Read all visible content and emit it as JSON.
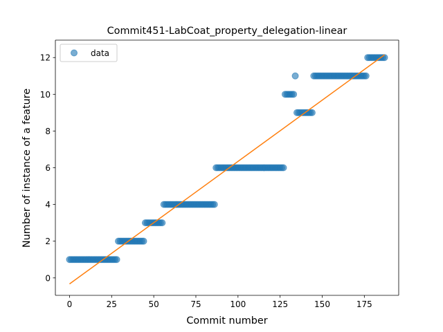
{
  "chart_data": {
    "type": "scatter",
    "title": "Commit451-LabCoat_property_delegation-linear",
    "xlabel": "Commit number",
    "ylabel": "Number of instance of a feature",
    "xlim": [
      -8.4,
      195.4
    ],
    "ylim": [
      -0.95,
      12.95
    ],
    "xticks": [
      0,
      25,
      50,
      75,
      100,
      125,
      150,
      175
    ],
    "yticks": [
      0,
      2,
      4,
      6,
      8,
      10,
      12
    ],
    "legend": {
      "label": "data",
      "position": "top-left"
    },
    "colors": {
      "points": "#1f77b4",
      "fit_line": "#ff7f0e"
    },
    "segments": [
      {
        "x_start": 0,
        "x_end": 28,
        "y": 1
      },
      {
        "x_start": 29,
        "x_end": 44,
        "y": 2
      },
      {
        "x_start": 45,
        "x_end": 55,
        "y": 3
      },
      {
        "x_start": 56,
        "x_end": 86,
        "y": 4
      },
      {
        "x_start": 87,
        "x_end": 127,
        "y": 6
      },
      {
        "x_start": 128,
        "x_end": 133,
        "y": 10
      },
      {
        "x_start": 134,
        "x_end": 134,
        "y": 11
      },
      {
        "x_start": 135,
        "x_end": 144,
        "y": 9
      },
      {
        "x_start": 145,
        "x_end": 176,
        "y": 11
      },
      {
        "x_start": 177,
        "x_end": 187,
        "y": 12
      }
    ],
    "fit_line": {
      "x": [
        0,
        187
      ],
      "y": [
        -0.33,
        12.15
      ]
    }
  }
}
